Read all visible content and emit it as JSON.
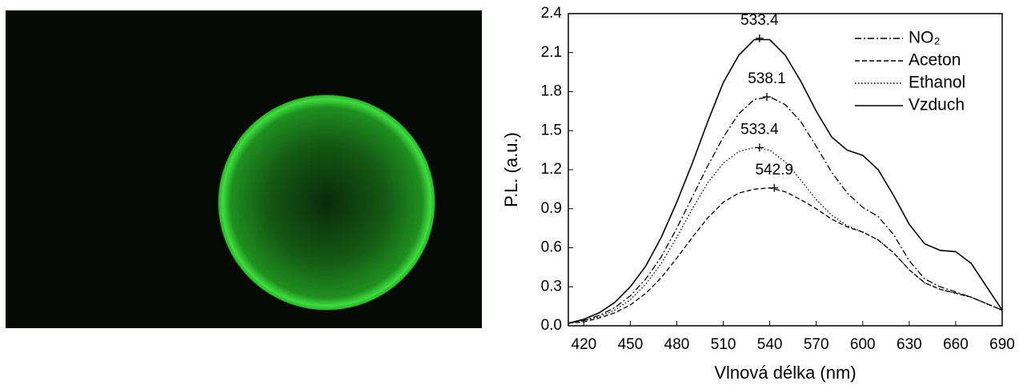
{
  "chart_data": {
    "type": "line",
    "xlabel": "Vlnová délka (nm)",
    "ylabel": "P.L. (a.u.)",
    "x": [
      410,
      420,
      430,
      440,
      450,
      460,
      470,
      480,
      490,
      500,
      510,
      520,
      530,
      540,
      550,
      560,
      570,
      580,
      590,
      600,
      610,
      620,
      630,
      640,
      650,
      660,
      670,
      680,
      690
    ],
    "series": [
      {
        "name": "NO₂",
        "color": "#000000",
        "style": "dashdot",
        "values": [
          0.02,
          0.04,
          0.08,
          0.14,
          0.23,
          0.36,
          0.53,
          0.75,
          0.99,
          1.23,
          1.45,
          1.63,
          1.74,
          1.76,
          1.7,
          1.57,
          1.38,
          1.18,
          1.02,
          0.91,
          0.84,
          0.7,
          0.5,
          0.36,
          0.3,
          0.26,
          0.22,
          0.17,
          0.12
        ]
      },
      {
        "name": "Aceton",
        "color": "#000000",
        "style": "dashed",
        "values": [
          0.02,
          0.03,
          0.06,
          0.1,
          0.16,
          0.25,
          0.37,
          0.52,
          0.68,
          0.83,
          0.95,
          1.02,
          1.05,
          1.06,
          1.03,
          0.97,
          0.9,
          0.82,
          0.76,
          0.72,
          0.66,
          0.56,
          0.43,
          0.33,
          0.28,
          0.25,
          0.22,
          0.17,
          0.12
        ]
      },
      {
        "name": "Ethanol",
        "color": "#000000",
        "style": "dotted",
        "values": [
          0.02,
          0.04,
          0.07,
          0.12,
          0.2,
          0.32,
          0.48,
          0.68,
          0.9,
          1.1,
          1.25,
          1.34,
          1.37,
          1.35,
          1.26,
          1.12,
          0.97,
          0.85,
          0.77,
          0.72,
          0.66,
          0.56,
          0.43,
          0.33,
          0.28,
          0.25,
          0.22,
          0.17,
          0.12
        ]
      },
      {
        "name": "Vzduch",
        "color": "#000000",
        "style": "solid",
        "values": [
          0.02,
          0.05,
          0.1,
          0.18,
          0.3,
          0.46,
          0.68,
          0.95,
          1.25,
          1.57,
          1.87,
          2.08,
          2.2,
          2.2,
          2.08,
          1.88,
          1.65,
          1.45,
          1.35,
          1.31,
          1.2,
          1.0,
          0.78,
          0.63,
          0.58,
          0.57,
          0.48,
          0.3,
          0.12
        ]
      }
    ],
    "peaks": [
      {
        "x": 533.4,
        "y": 2.21
      },
      {
        "x": 538.1,
        "y": 1.76
      },
      {
        "x": 533.4,
        "y": 1.37
      },
      {
        "x": 542.9,
        "y": 1.06
      }
    ],
    "xlim": [
      410,
      690
    ],
    "xticks": [
      420,
      450,
      480,
      510,
      540,
      570,
      600,
      630,
      660,
      690
    ],
    "ylim": [
      0,
      2.4
    ],
    "yticks": [
      {
        "value": 0,
        "label": "0.0"
      },
      0.3,
      0.6,
      0.9,
      1.2,
      1.5,
      1.8,
      2.1,
      2.4
    ],
    "legend": "upper right"
  }
}
